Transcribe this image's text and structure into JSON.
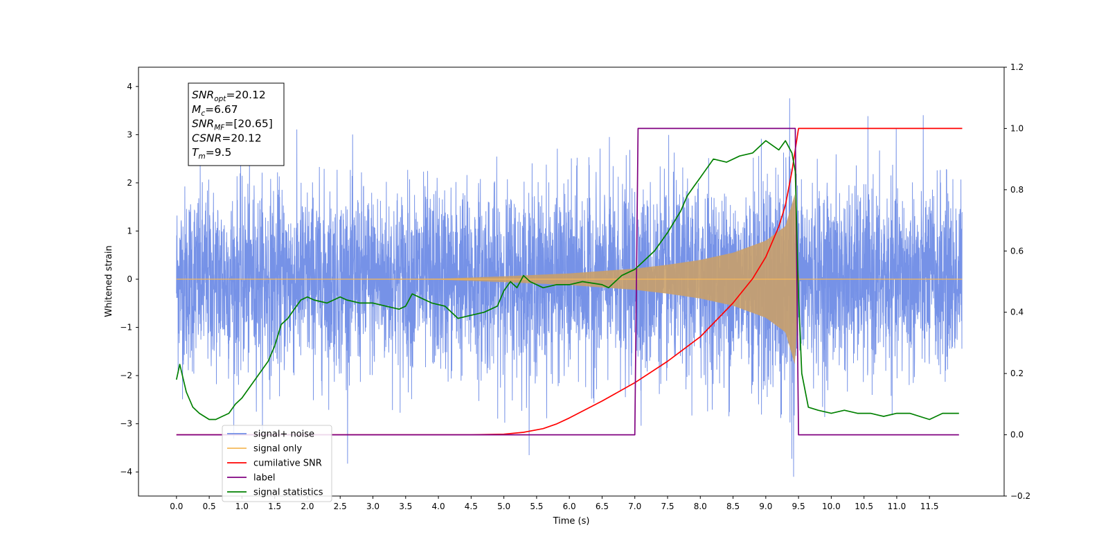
{
  "chart_data": {
    "type": "line",
    "xlabel": "Time (s)",
    "ylabel": "Whitened strain",
    "xlim": [
      -0.58,
      12.64
    ],
    "ylim_left": [
      -4.5,
      4.4
    ],
    "ylim_right": [
      -0.2,
      1.2
    ],
    "x_ticks": [
      "0.0",
      "0.5",
      "1.0",
      "1.5",
      "2.0",
      "2.5",
      "3.0",
      "3.5",
      "4.0",
      "4.5",
      "5.0",
      "5.5",
      "6.0",
      "6.5",
      "7.0",
      "7.5",
      "8.0",
      "8.5",
      "9.0",
      "9.5",
      "10.0",
      "10.5",
      "11.0",
      "11.5"
    ],
    "y_ticks_left": [
      "4",
      "3",
      "2",
      "1",
      "0",
      "−1",
      "−2",
      "−3",
      "−4"
    ],
    "y_ticks_right": [
      "1.2",
      "1.0",
      "0.8",
      "0.6",
      "0.4",
      "0.2",
      "0.0",
      "−0.2"
    ],
    "grid": false,
    "legend_position": "lower-left",
    "annotation_lines": [
      {
        "var": "SNR",
        "sub": "opt",
        "value": "=20.12"
      },
      {
        "var": "M",
        "sub": "c",
        "value": "=6.67"
      },
      {
        "var": "SNR",
        "sub": "MF",
        "value": "=[20.65]"
      },
      {
        "var": "CSNR",
        "sub": "",
        "value": "=20.12"
      },
      {
        "var": "T",
        "sub": "m",
        "value": "=9.5"
      }
    ],
    "series": [
      {
        "name": "signal+ noise",
        "color": "#6f8ce6",
        "axis": "left",
        "kind": "noise",
        "t_range": [
          0,
          12
        ],
        "envelope_sigma": 1.0,
        "max_abs": 4.1
      },
      {
        "name": "signal only",
        "color": "#f5b85a",
        "axis": "left",
        "kind": "chirp",
        "t_range": [
          0,
          12
        ],
        "amplitude_envelope": [
          [
            0,
            0.0
          ],
          [
            4.0,
            0.01
          ],
          [
            5.0,
            0.06
          ],
          [
            6.0,
            0.12
          ],
          [
            7.0,
            0.22
          ],
          [
            7.5,
            0.3
          ],
          [
            8.0,
            0.4
          ],
          [
            8.5,
            0.55
          ],
          [
            9.0,
            0.8
          ],
          [
            9.3,
            1.1
          ],
          [
            9.45,
            1.8
          ],
          [
            9.5,
            0.0
          ],
          [
            12,
            0.0
          ]
        ]
      },
      {
        "name": "cumilative SNR",
        "color": "#ff0000",
        "axis": "right",
        "x": [
          0,
          4.5,
          5.0,
          5.3,
          5.6,
          5.8,
          6.0,
          6.5,
          7.0,
          7.5,
          8.0,
          8.5,
          8.8,
          9.0,
          9.2,
          9.3,
          9.4,
          9.5,
          12.0
        ],
        "y": [
          0,
          0,
          0.002,
          0.008,
          0.02,
          0.035,
          0.055,
          0.11,
          0.17,
          0.24,
          0.32,
          0.43,
          0.51,
          0.58,
          0.68,
          0.75,
          0.86,
          1.0,
          1.0
        ]
      },
      {
        "name": "label",
        "color": "#800080",
        "axis": "right",
        "x": [
          0,
          7.0,
          7.05,
          9.45,
          9.5,
          11.95
        ],
        "y": [
          0,
          0,
          1.0,
          1.0,
          0,
          0
        ]
      },
      {
        "name": "signal statistics",
        "color": "#008000",
        "axis": "right",
        "x": [
          0,
          0.05,
          0.15,
          0.25,
          0.35,
          0.5,
          0.6,
          0.7,
          0.8,
          0.9,
          1.0,
          1.2,
          1.4,
          1.5,
          1.6,
          1.7,
          1.8,
          1.9,
          2.0,
          2.1,
          2.3,
          2.5,
          2.6,
          2.8,
          3.0,
          3.2,
          3.4,
          3.5,
          3.6,
          3.8,
          3.9,
          4.1,
          4.3,
          4.5,
          4.7,
          4.9,
          5.0,
          5.1,
          5.2,
          5.3,
          5.4,
          5.6,
          5.8,
          6.0,
          6.2,
          6.5,
          6.6,
          6.8,
          7.0,
          7.1,
          7.3,
          7.5,
          7.7,
          7.8,
          7.9,
          8.0,
          8.2,
          8.4,
          8.6,
          8.8,
          9.0,
          9.2,
          9.3,
          9.4,
          9.45,
          9.5,
          9.55,
          9.65,
          9.8,
          10.0,
          10.2,
          10.4,
          10.6,
          10.8,
          11.0,
          11.2,
          11.5,
          11.7,
          11.95
        ],
        "y": [
          0.18,
          0.23,
          0.14,
          0.09,
          0.07,
          0.05,
          0.05,
          0.06,
          0.07,
          0.1,
          0.12,
          0.18,
          0.24,
          0.29,
          0.36,
          0.38,
          0.41,
          0.44,
          0.45,
          0.44,
          0.43,
          0.45,
          0.44,
          0.43,
          0.43,
          0.42,
          0.41,
          0.42,
          0.46,
          0.44,
          0.43,
          0.42,
          0.38,
          0.39,
          0.4,
          0.42,
          0.47,
          0.5,
          0.48,
          0.52,
          0.5,
          0.48,
          0.49,
          0.49,
          0.5,
          0.49,
          0.48,
          0.52,
          0.54,
          0.56,
          0.6,
          0.66,
          0.73,
          0.78,
          0.81,
          0.84,
          0.9,
          0.89,
          0.91,
          0.92,
          0.96,
          0.93,
          0.96,
          0.92,
          0.86,
          0.45,
          0.2,
          0.09,
          0.08,
          0.07,
          0.08,
          0.07,
          0.07,
          0.06,
          0.07,
          0.07,
          0.05,
          0.07,
          0.07
        ]
      }
    ]
  }
}
